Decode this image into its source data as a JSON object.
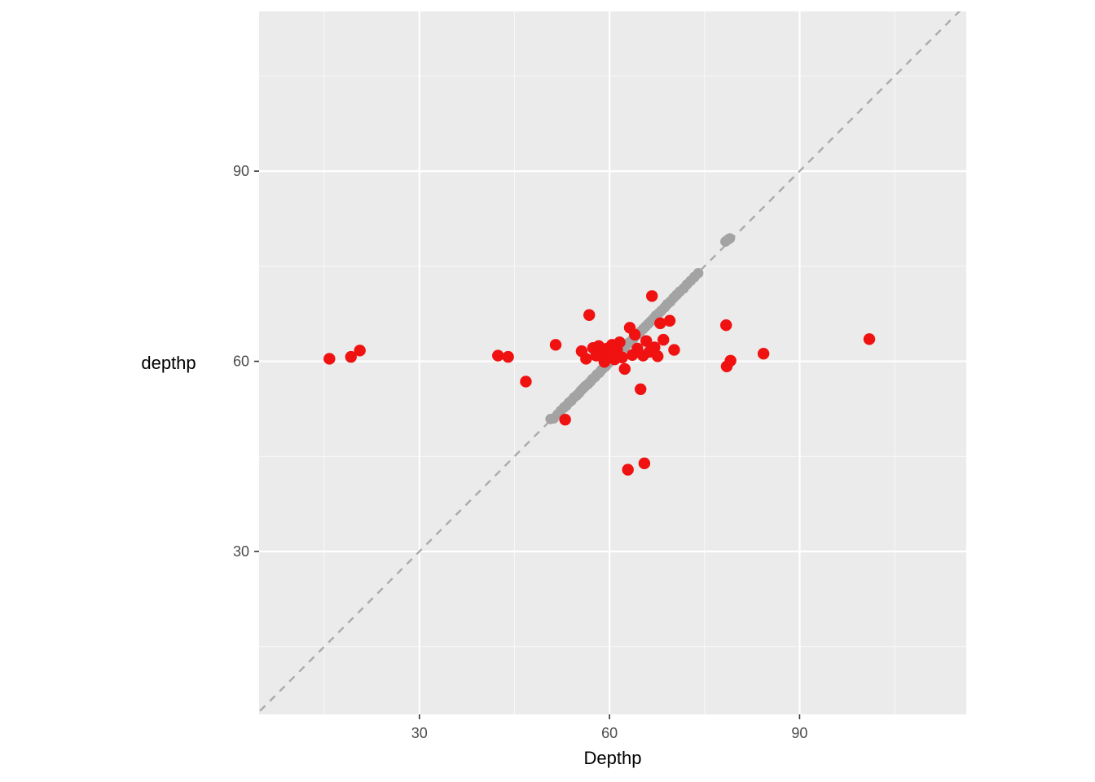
{
  "figure": {
    "background": "#FFFFFF"
  },
  "chart_data": {
    "type": "scatter",
    "title": "",
    "xlabel": "Depthp",
    "ylabel": "depthp",
    "xlim": [
      4.7,
      116.3
    ],
    "ylim": [
      4.3,
      115.2
    ],
    "x_ticks": [
      30,
      60,
      90
    ],
    "y_ticks": [
      30,
      60,
      90
    ],
    "x_tick_labels": [
      "30",
      "60",
      "90"
    ],
    "y_tick_labels": [
      "30",
      "60",
      "90"
    ],
    "x_minor_ticks": [
      15,
      45,
      75,
      105
    ],
    "y_minor_ticks": [
      15,
      45,
      75,
      105
    ],
    "grid": "on",
    "legend": "none",
    "panel_bg": "#EBEBEB",
    "grid_major_color": "#FFFFFF",
    "grid_minor_color": "#F7F7F7",
    "tick_mark_color": "#333333",
    "tick_label_color": "#4D4D4D",
    "identity_line": {
      "equation": "y = x",
      "style": "dashed",
      "color": "#ABABAB"
    },
    "series": [
      {
        "name": "identity-points",
        "color": "#A3A3A3",
        "marker_radius": 6.4,
        "points": [
          [
            50.7,
            50.9
          ],
          [
            51.2,
            51.0
          ],
          [
            51.8,
            51.6
          ],
          [
            52.3,
            52.2
          ],
          [
            52.8,
            52.7
          ],
          [
            53.2,
            53.0
          ],
          [
            53.6,
            53.5
          ],
          [
            54.0,
            53.8
          ],
          [
            54.4,
            54.3
          ],
          [
            54.8,
            54.6
          ],
          [
            55.2,
            55.0
          ],
          [
            55.5,
            55.4
          ],
          [
            55.9,
            55.8
          ],
          [
            56.2,
            56.1
          ],
          [
            56.6,
            56.4
          ],
          [
            57.0,
            56.8
          ],
          [
            57.3,
            57.2
          ],
          [
            57.7,
            57.5
          ],
          [
            58.0,
            57.9
          ],
          [
            58.4,
            58.2
          ],
          [
            58.7,
            58.6
          ],
          [
            59.0,
            58.9
          ],
          [
            59.4,
            59.2
          ],
          [
            59.7,
            59.6
          ],
          [
            60.0,
            59.9
          ],
          [
            60.3,
            60.2
          ],
          [
            60.7,
            60.5
          ],
          [
            61.0,
            60.9
          ],
          [
            61.3,
            61.2
          ],
          [
            61.7,
            61.5
          ],
          [
            62.0,
            61.9
          ],
          [
            62.4,
            62.2
          ],
          [
            62.7,
            62.6
          ],
          [
            63.0,
            62.9
          ],
          [
            63.4,
            63.2
          ],
          [
            63.8,
            63.6
          ],
          [
            64.1,
            64.0
          ],
          [
            64.5,
            64.3
          ],
          [
            64.9,
            64.7
          ],
          [
            65.3,
            65.1
          ],
          [
            65.7,
            65.5
          ],
          [
            66.1,
            65.9
          ],
          [
            66.5,
            66.3
          ],
          [
            66.9,
            66.7
          ],
          [
            67.3,
            67.2
          ],
          [
            67.8,
            67.6
          ],
          [
            68.2,
            68.0
          ],
          [
            68.7,
            68.5
          ],
          [
            69.1,
            69.0
          ],
          [
            69.6,
            69.4
          ],
          [
            70.1,
            70.0
          ],
          [
            70.6,
            70.5
          ],
          [
            71.1,
            71.0
          ],
          [
            71.7,
            71.5
          ],
          [
            72.2,
            72.1
          ],
          [
            72.8,
            72.7
          ],
          [
            73.4,
            73.3
          ],
          [
            74.0,
            73.9
          ],
          [
            78.3,
            78.9
          ],
          [
            78.7,
            79.2
          ],
          [
            79.0,
            79.4
          ]
        ]
      },
      {
        "name": "measured-points",
        "color": "#F01111",
        "marker_radius": 7.2,
        "points": [
          [
            15.8,
            60.4
          ],
          [
            19.2,
            60.7
          ],
          [
            20.6,
            61.7
          ],
          [
            42.4,
            60.9
          ],
          [
            44.0,
            60.7
          ],
          [
            46.8,
            56.8
          ],
          [
            51.5,
            62.6
          ],
          [
            53.0,
            50.8
          ],
          [
            55.6,
            61.6
          ],
          [
            56.3,
            60.4
          ],
          [
            56.8,
            67.3
          ],
          [
            57.4,
            62.1
          ],
          [
            57.9,
            60.9
          ],
          [
            58.3,
            62.4
          ],
          [
            58.8,
            61.3
          ],
          [
            59.2,
            59.9
          ],
          [
            59.6,
            62.0
          ],
          [
            60.0,
            61.2
          ],
          [
            60.4,
            62.6
          ],
          [
            60.8,
            60.3
          ],
          [
            61.2,
            61.8
          ],
          [
            61.6,
            63.0
          ],
          [
            62.0,
            60.6
          ],
          [
            62.4,
            58.8
          ],
          [
            62.9,
            42.9
          ],
          [
            63.2,
            65.3
          ],
          [
            63.6,
            61.0
          ],
          [
            64.0,
            64.2
          ],
          [
            64.4,
            62.0
          ],
          [
            64.9,
            55.6
          ],
          [
            65.3,
            60.9
          ],
          [
            65.5,
            43.9
          ],
          [
            65.8,
            63.2
          ],
          [
            66.3,
            61.5
          ],
          [
            66.7,
            70.3
          ],
          [
            67.1,
            62.2
          ],
          [
            67.6,
            60.8
          ],
          [
            68.0,
            66.0
          ],
          [
            68.5,
            63.4
          ],
          [
            69.5,
            66.4
          ],
          [
            70.2,
            61.8
          ],
          [
            78.4,
            65.7
          ],
          [
            78.5,
            59.2
          ],
          [
            79.1,
            60.1
          ],
          [
            84.3,
            61.2
          ],
          [
            101.0,
            63.5
          ]
        ]
      }
    ]
  }
}
